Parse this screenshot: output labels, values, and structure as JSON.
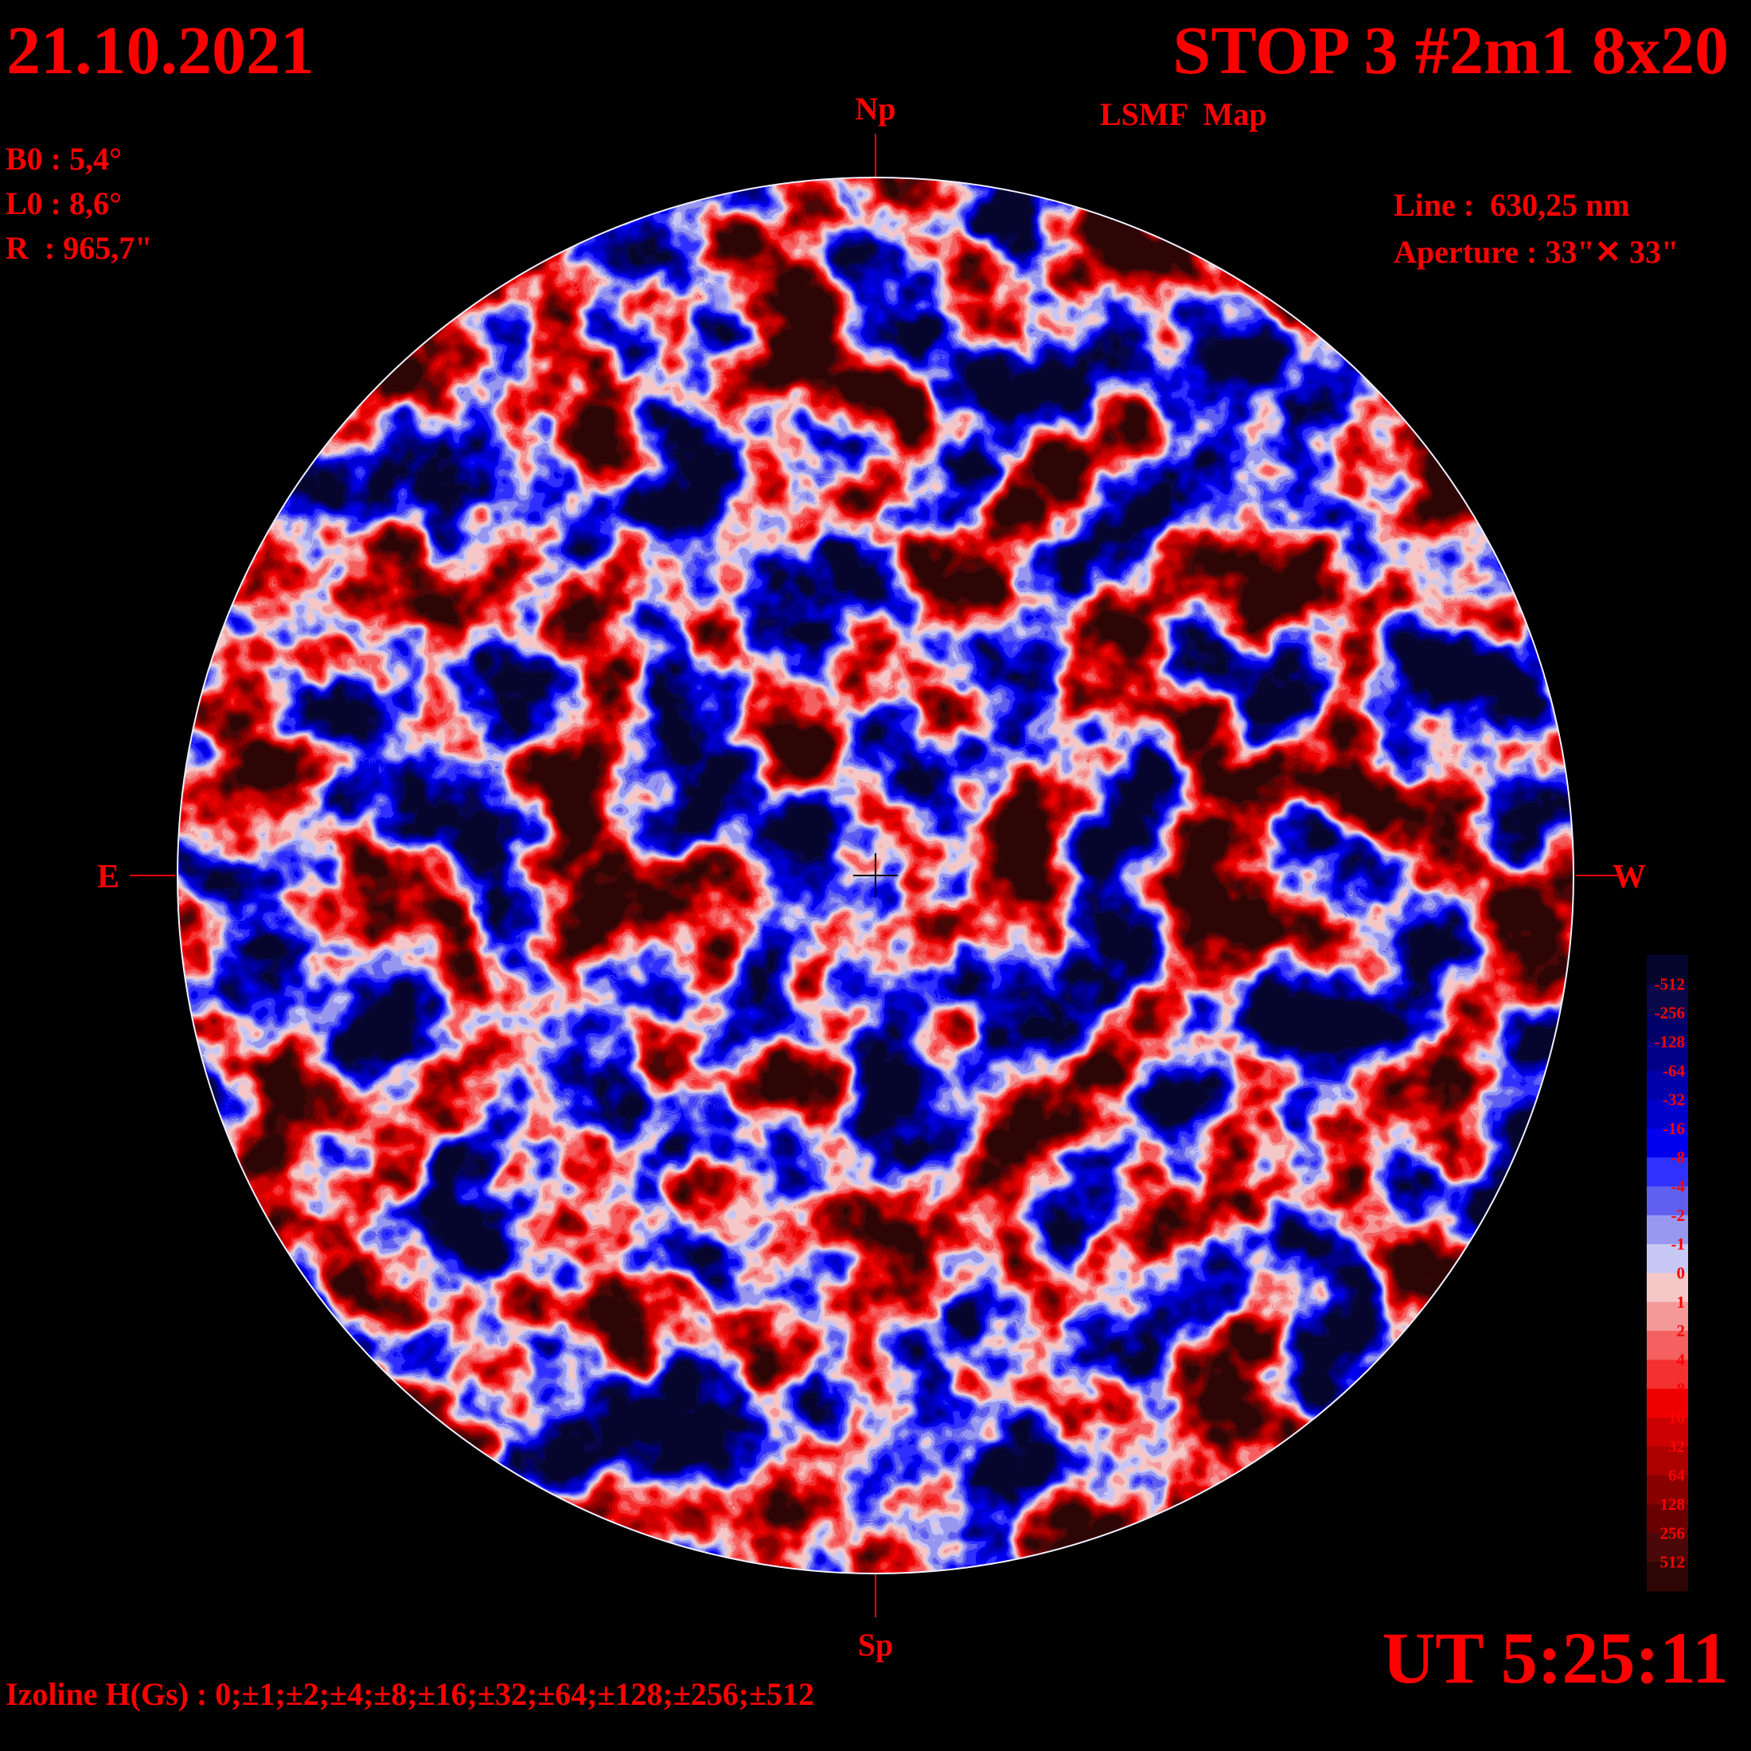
{
  "header": {
    "date": "21.10.2021",
    "title": "STOP 3 #2m1 8x20",
    "subtitle": "LSMF  Map",
    "ut": "UT 5:25:11"
  },
  "params": [
    "B0 : 5,4°",
    "L0 : 8,6°",
    "R  : 965,7\""
  ],
  "instrument": [
    "Line :  630,25 nm",
    "Aperture : 33\"✕ 33\""
  ],
  "directions": {
    "north": "Np",
    "south": "Sp",
    "east": "E",
    "west": "W"
  },
  "izoline": "Izoline H(Gs) : 0;±1;±2;±4;±8;±16;±32;±64;±128;±256;±512",
  "legend": {
    "levels": [
      -512,
      -256,
      -128,
      -64,
      -32,
      -16,
      -8,
      -4,
      -2,
      -1,
      0,
      1,
      2,
      4,
      8,
      16,
      32,
      64,
      128,
      256,
      512
    ],
    "colors": [
      "#05052e",
      "#08084a",
      "#000068",
      "#000088",
      "#0000aa",
      "#0000cc",
      "#0000ee",
      "#3030ff",
      "#6060f0",
      "#9898f0",
      "#c8c8f5",
      "#f5c8c8",
      "#f59898",
      "#f56060",
      "#f53030",
      "#ee0000",
      "#cc0000",
      "#aa0000",
      "#880000",
      "#680000",
      "#4a0808",
      "#2e0505"
    ]
  }
}
